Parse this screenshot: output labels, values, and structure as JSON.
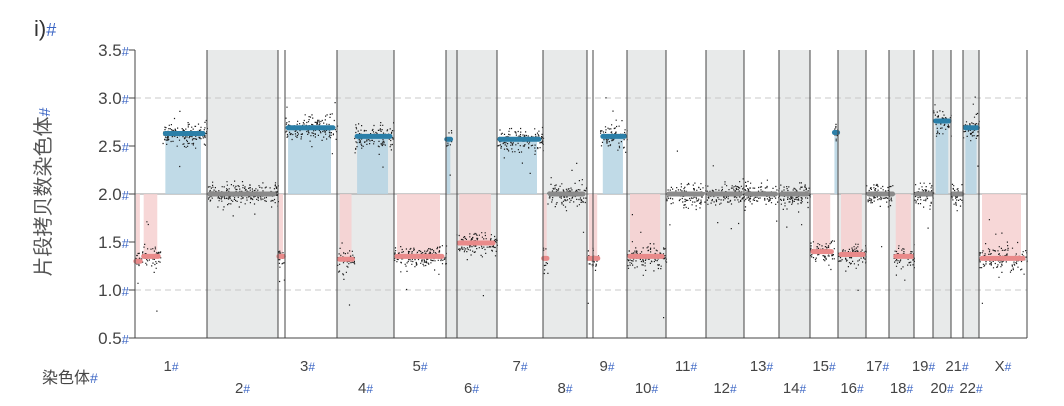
{
  "panel_label": "i)",
  "hash": "#",
  "colors": {
    "gain": "#2b7fa8",
    "gain_fill": "#b5d3e3",
    "loss": "#e98a8a",
    "loss_fill": "#f6d0d0",
    "neutral": "#8a8a8a",
    "shade": "#e8eaea",
    "axis": "#444444",
    "hash": "#3c66c4",
    "text": "#333333"
  },
  "chart_data": {
    "type": "scatter",
    "title": "",
    "ylabel": "片段拷贝数染色体",
    "xlabel": "染色体",
    "ylim": [
      0.5,
      3.5
    ],
    "yticks": [
      "0.5",
      "1.0",
      "1.5",
      "2.0",
      "2.5",
      "3.0",
      "3.5"
    ],
    "baseline": 2.0,
    "dashed_gridlines": [
      1.0,
      3.0
    ],
    "chromosomes": [
      {
        "label": "1",
        "row": "top",
        "shaded": false,
        "segments": [
          {
            "start": 0.0,
            "end": 0.08,
            "cn": 1.3
          },
          {
            "start": 0.08,
            "end": 0.35,
            "cn": 1.35
          },
          {
            "start": 0.38,
            "end": 1.0,
            "cn": 2.63
          }
        ]
      },
      {
        "label": "2",
        "row": "bottom",
        "shaded": true,
        "segments": [
          {
            "start": 0.0,
            "end": 1.0,
            "cn": 2.0
          }
        ]
      },
      {
        "label": "3",
        "row": "top",
        "shaded": false,
        "segments": [
          {
            "start": 0.0,
            "end": 0.1,
            "cn": 1.35
          },
          {
            "start": 0.12,
            "end": 1.0,
            "cn": 2.69
          }
        ]
      },
      {
        "label": "4",
        "row": "bottom",
        "shaded": true,
        "segments": [
          {
            "start": 0.0,
            "end": 0.3,
            "cn": 1.32
          },
          {
            "start": 0.3,
            "end": 1.0,
            "cn": 2.6
          }
        ]
      },
      {
        "label": "5",
        "row": "top",
        "shaded": false,
        "segments": [
          {
            "start": 0.0,
            "end": 1.0,
            "cn": 1.35
          }
        ]
      },
      {
        "label": "6",
        "row": "bottom",
        "shaded": true,
        "segments": [
          {
            "start": 0.0,
            "end": 0.1,
            "cn": 2.57
          },
          {
            "start": 0.2,
            "end": 1.0,
            "cn": 1.49
          }
        ]
      },
      {
        "label": "7",
        "row": "top",
        "shaded": false,
        "segments": [
          {
            "start": 0.0,
            "end": 1.0,
            "cn": 2.57
          }
        ]
      },
      {
        "label": "8",
        "row": "bottom",
        "shaded": true,
        "segments": [
          {
            "start": 0.0,
            "end": 0.1,
            "cn": 1.33
          },
          {
            "start": 0.1,
            "end": 1.0,
            "cn": 2.0
          }
        ]
      },
      {
        "label": "9",
        "row": "top",
        "shaded": false,
        "segments": [
          {
            "start": 0.0,
            "end": 0.3,
            "cn": 1.33
          },
          {
            "start": 0.32,
            "end": 1.0,
            "cn": 2.6
          }
        ]
      },
      {
        "label": "10",
        "row": "bottom",
        "shaded": true,
        "segments": [
          {
            "start": 0.0,
            "end": 1.0,
            "cn": 1.35
          }
        ]
      },
      {
        "label": "11",
        "row": "top",
        "shaded": false,
        "segments": [
          {
            "start": 0.0,
            "end": 1.0,
            "cn": 2.0
          }
        ]
      },
      {
        "label": "12",
        "row": "bottom",
        "shaded": true,
        "segments": [
          {
            "start": 0.0,
            "end": 1.0,
            "cn": 2.0
          }
        ]
      },
      {
        "label": "13",
        "row": "top",
        "shaded": false,
        "segments": [
          {
            "start": 0.0,
            "end": 1.0,
            "cn": 2.0
          }
        ]
      },
      {
        "label": "14",
        "row": "bottom",
        "shaded": true,
        "segments": [
          {
            "start": 0.0,
            "end": 1.0,
            "cn": 2.0
          }
        ]
      },
      {
        "label": "15",
        "row": "top",
        "shaded": false,
        "segments": [
          {
            "start": 0.0,
            "end": 0.85,
            "cn": 1.4
          },
          {
            "start": 0.85,
            "end": 1.0,
            "cn": 2.64
          }
        ]
      },
      {
        "label": "16",
        "row": "bottom",
        "shaded": true,
        "segments": [
          {
            "start": 0.0,
            "end": 1.0,
            "cn": 1.37
          }
        ]
      },
      {
        "label": "17",
        "row": "top",
        "shaded": false,
        "segments": [
          {
            "start": 0.0,
            "end": 1.0,
            "cn": 2.0
          }
        ]
      },
      {
        "label": "18",
        "row": "bottom",
        "shaded": true,
        "segments": [
          {
            "start": 0.0,
            "end": 0.15,
            "cn": 2.0
          },
          {
            "start": 0.15,
            "end": 1.0,
            "cn": 1.35
          }
        ]
      },
      {
        "label": "19",
        "row": "top",
        "shaded": false,
        "segments": [
          {
            "start": 0.0,
            "end": 1.0,
            "cn": 2.0
          }
        ]
      },
      {
        "label": "20",
        "row": "bottom",
        "shaded": true,
        "segments": [
          {
            "start": 0.0,
            "end": 1.0,
            "cn": 2.76
          }
        ]
      },
      {
        "label": "21",
        "row": "top",
        "shaded": false,
        "segments": [
          {
            "start": 0.0,
            "end": 1.0,
            "cn": 2.0
          }
        ]
      },
      {
        "label": "22",
        "row": "bottom",
        "shaded": true,
        "segments": [
          {
            "start": 0.0,
            "end": 1.0,
            "cn": 2.69
          }
        ]
      },
      {
        "label": "X",
        "row": "top",
        "shaded": false,
        "segments": [
          {
            "start": 0.0,
            "end": 1.0,
            "cn": 1.33
          }
        ]
      }
    ]
  }
}
